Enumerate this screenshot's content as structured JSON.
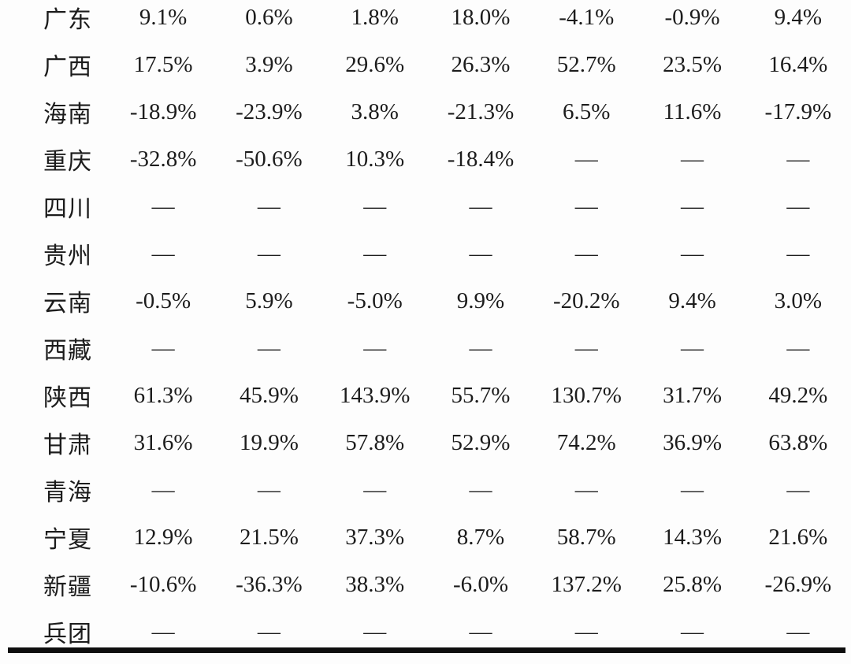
{
  "table": {
    "description": "Province growth-rate table (header rows cropped out of view)",
    "missing_placeholder": "—",
    "rows": [
      {
        "province": "广东",
        "values": [
          "9.1%",
          "0.6%",
          "1.8%",
          "18.0%",
          "-4.1%",
          "-0.9%",
          "9.4%"
        ]
      },
      {
        "province": "广西",
        "values": [
          "17.5%",
          "3.9%",
          "29.6%",
          "26.3%",
          "52.7%",
          "23.5%",
          "16.4%"
        ]
      },
      {
        "province": "海南",
        "values": [
          "-18.9%",
          "-23.9%",
          "3.8%",
          "-21.3%",
          "6.5%",
          "11.6%",
          "-17.9%"
        ]
      },
      {
        "province": "重庆",
        "values": [
          "-32.8%",
          "-50.6%",
          "10.3%",
          "-18.4%",
          "—",
          "—",
          "—"
        ]
      },
      {
        "province": "四川",
        "values": [
          "—",
          "—",
          "—",
          "—",
          "—",
          "—",
          "—"
        ]
      },
      {
        "province": "贵州",
        "values": [
          "—",
          "—",
          "—",
          "—",
          "—",
          "—",
          "—"
        ]
      },
      {
        "province": "云南",
        "values": [
          "-0.5%",
          "5.9%",
          "-5.0%",
          "9.9%",
          "-20.2%",
          "9.4%",
          "3.0%"
        ]
      },
      {
        "province": "西藏",
        "values": [
          "—",
          "—",
          "—",
          "—",
          "—",
          "—",
          "—"
        ]
      },
      {
        "province": "陕西",
        "values": [
          "61.3%",
          "45.9%",
          "143.9%",
          "55.7%",
          "130.7%",
          "31.7%",
          "49.2%"
        ]
      },
      {
        "province": "甘肃",
        "values": [
          "31.6%",
          "19.9%",
          "57.8%",
          "52.9%",
          "74.2%",
          "36.9%",
          "63.8%"
        ]
      },
      {
        "province": "青海",
        "values": [
          "—",
          "—",
          "—",
          "—",
          "—",
          "—",
          "—"
        ]
      },
      {
        "province": "宁夏",
        "values": [
          "12.9%",
          "21.5%",
          "37.3%",
          "8.7%",
          "58.7%",
          "14.3%",
          "21.6%"
        ]
      },
      {
        "province": "新疆",
        "values": [
          "-10.6%",
          "-36.3%",
          "38.3%",
          "-6.0%",
          "137.2%",
          "25.8%",
          "-26.9%"
        ]
      },
      {
        "province": "兵团",
        "values": [
          "—",
          "—",
          "—",
          "—",
          "—",
          "—",
          "—"
        ]
      }
    ]
  },
  "colors": {
    "text": "#1c1c1c",
    "bottom_border": "#0e0e0e",
    "background": "#fdfdfd"
  }
}
